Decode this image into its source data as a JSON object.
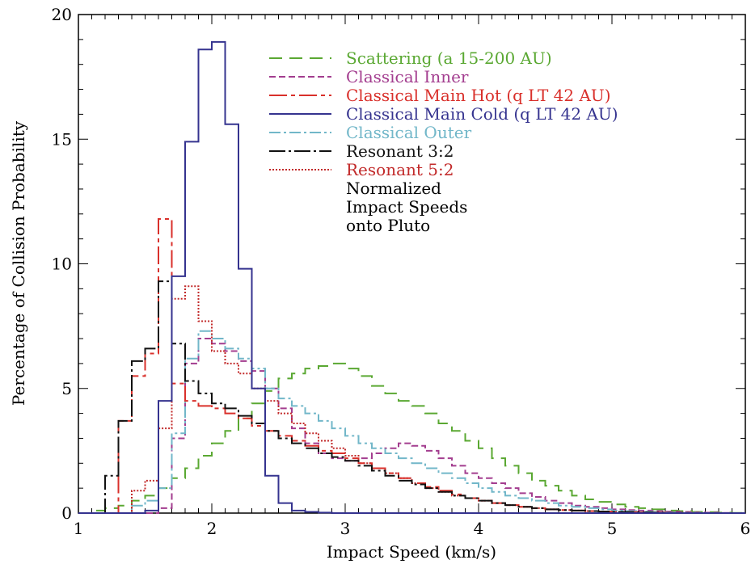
{
  "chart_data": {
    "type": "line",
    "step": true,
    "title": "",
    "xlabel": "Impact Speed (km/s)",
    "ylabel": "Percentage of Collision Probability",
    "xlim": [
      1,
      6
    ],
    "ylim": [
      0,
      20
    ],
    "x_ticks": [
      "1",
      "2",
      "3",
      "4",
      "5",
      "6"
    ],
    "y_ticks": [
      "0",
      "5",
      "10",
      "15",
      "20"
    ],
    "grid": false,
    "legend_position": "top-right",
    "annotation": [
      "Normalized",
      "Impact Speeds",
      "onto Pluto"
    ],
    "x": [
      1.0,
      1.1,
      1.2,
      1.3,
      1.4,
      1.5,
      1.6,
      1.7,
      1.8,
      1.9,
      2.0,
      2.1,
      2.2,
      2.3,
      2.4,
      2.5,
      2.6,
      2.7,
      2.8,
      2.9,
      3.0,
      3.1,
      3.2,
      3.3,
      3.4,
      3.5,
      3.6,
      3.7,
      3.8,
      3.9,
      4.0,
      4.1,
      4.2,
      4.3,
      4.4,
      4.5,
      4.6,
      4.7,
      4.8,
      4.9,
      5.0,
      5.1,
      5.2,
      5.3,
      5.4,
      5.5,
      5.6,
      5.7,
      5.8,
      5.9
    ],
    "series": [
      {
        "name": "Scattering (a 15-200 AU)",
        "color": "#5aa832",
        "dash": "16,9",
        "values": [
          0,
          0.1,
          0.2,
          0.3,
          0.5,
          0.7,
          1.0,
          1.4,
          1.8,
          2.3,
          2.8,
          3.3,
          3.8,
          4.4,
          4.9,
          5.4,
          5.6,
          5.8,
          5.9,
          6.0,
          5.8,
          5.5,
          5.1,
          4.8,
          4.5,
          4.3,
          4.0,
          3.6,
          3.3,
          2.9,
          2.6,
          2.2,
          1.9,
          1.6,
          1.3,
          1.1,
          0.9,
          0.7,
          0.55,
          0.45,
          0.35,
          0.25,
          0.2,
          0.15,
          0.1,
          0.08,
          0.05,
          0.04,
          0.02,
          0.01
        ]
      },
      {
        "name": "Classical Inner",
        "color": "#a33d8f",
        "dash": "8,4",
        "values": [
          0,
          0,
          0,
          0,
          0,
          0,
          0.2,
          3.0,
          6.0,
          7.0,
          6.8,
          6.5,
          6.1,
          5.7,
          5.0,
          4.2,
          3.4,
          2.8,
          2.4,
          2.2,
          2.1,
          2.2,
          2.4,
          2.6,
          2.8,
          2.7,
          2.5,
          2.2,
          1.9,
          1.6,
          1.4,
          1.2,
          1.0,
          0.8,
          0.65,
          0.5,
          0.4,
          0.3,
          0.25,
          0.2,
          0.15,
          0.12,
          0.1,
          0.08,
          0.06,
          0.05,
          0.03,
          0.02,
          0.01,
          0
        ]
      },
      {
        "name": "Classical Main Hot (q LT 42 AU)",
        "color": "#d9302b",
        "dash": "22,5,5,5",
        "values": [
          0,
          0,
          0,
          3.7,
          5.5,
          6.4,
          11.8,
          5.2,
          4.5,
          4.3,
          4.2,
          4.0,
          3.8,
          3.5,
          3.3,
          3.1,
          2.9,
          2.7,
          2.5,
          2.4,
          2.2,
          2.0,
          1.8,
          1.6,
          1.4,
          1.2,
          1.05,
          0.9,
          0.75,
          0.6,
          0.5,
          0.4,
          0.32,
          0.25,
          0.2,
          0.15,
          0.12,
          0.1,
          0.08,
          0.06,
          0.05,
          0.04,
          0.03,
          0.02,
          0.01,
          0.01,
          0,
          0,
          0,
          0
        ]
      },
      {
        "name": "Classical Main Cold (q LT 42 AU)",
        "color": "#35338f",
        "dash": "",
        "values": [
          0,
          0,
          0,
          0,
          0,
          0.1,
          4.5,
          9.5,
          14.9,
          18.6,
          18.9,
          15.6,
          9.8,
          5.0,
          1.5,
          0.4,
          0.1,
          0.05,
          0.02,
          0,
          0,
          0,
          0,
          0,
          0,
          0,
          0,
          0,
          0,
          0,
          0,
          0,
          0,
          0,
          0,
          0,
          0,
          0,
          0,
          0,
          0,
          0,
          0,
          0,
          0,
          0,
          0,
          0,
          0,
          0
        ]
      },
      {
        "name": "Classical Outer",
        "color": "#72b7c9",
        "dash": "14,4,3,4",
        "values": [
          0,
          0,
          0,
          0,
          0.3,
          0.5,
          1.0,
          3.2,
          6.2,
          7.3,
          7.0,
          6.6,
          6.2,
          5.8,
          5.0,
          4.6,
          4.3,
          4.0,
          3.7,
          3.4,
          3.1,
          2.8,
          2.6,
          2.4,
          2.2,
          2.0,
          1.8,
          1.6,
          1.4,
          1.2,
          1.0,
          0.85,
          0.7,
          0.6,
          0.5,
          0.4,
          0.3,
          0.25,
          0.2,
          0.15,
          0.1,
          0.08,
          0.06,
          0.04,
          0.03,
          0.02,
          0.01,
          0,
          0,
          0
        ]
      },
      {
        "name": "Resonant 3:2",
        "color": "#111111",
        "dash": "20,4,3,4",
        "values": [
          0,
          0,
          1.5,
          3.7,
          6.1,
          6.6,
          9.3,
          6.8,
          5.3,
          4.8,
          4.4,
          4.2,
          3.9,
          3.6,
          3.3,
          3.0,
          2.8,
          2.6,
          2.4,
          2.25,
          2.1,
          1.9,
          1.7,
          1.5,
          1.3,
          1.15,
          1.0,
          0.85,
          0.7,
          0.6,
          0.5,
          0.4,
          0.32,
          0.25,
          0.2,
          0.15,
          0.12,
          0.1,
          0.08,
          0.06,
          0.05,
          0.04,
          0.03,
          0.02,
          0.01,
          0.01,
          0,
          0,
          0,
          0
        ]
      },
      {
        "name": "Resonant 5:2",
        "color": "#c22a2a",
        "dash": "2,2",
        "values": [
          0,
          0,
          0,
          0,
          0.9,
          1.3,
          3.4,
          8.6,
          9.1,
          7.7,
          6.5,
          6.0,
          5.6,
          5.0,
          4.5,
          4.0,
          3.6,
          3.2,
          2.9,
          2.6,
          2.3,
          2.0,
          1.8,
          1.6,
          1.4,
          1.2,
          1.0,
          0.85,
          0.7,
          0.6,
          0.5,
          0.4,
          0.32,
          0.25,
          0.2,
          0.15,
          0.12,
          0.1,
          0.08,
          0.06,
          0.05,
          0.04,
          0.03,
          0.02,
          0.01,
          0.01,
          0,
          0,
          0,
          0
        ]
      }
    ]
  }
}
